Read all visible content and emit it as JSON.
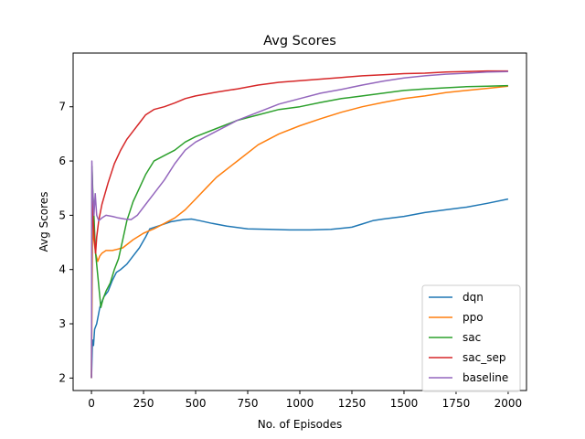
{
  "chart_data": {
    "type": "line",
    "title": "Avg Scores",
    "xlabel": "No. of Episodes",
    "ylabel": "Avg Scores",
    "xlim": [
      -88,
      2088
    ],
    "ylim": [
      1.77,
      7.99
    ],
    "xticks": [
      0,
      250,
      500,
      750,
      1000,
      1250,
      1500,
      1750,
      2000
    ],
    "yticks": [
      2,
      3,
      4,
      5,
      6,
      7
    ],
    "grid": false,
    "legend_position": "lower-right",
    "series": [
      {
        "name": "dqn",
        "color": "#1f77b4",
        "points": [
          [
            0,
            2.0
          ],
          [
            5,
            2.7
          ],
          [
            10,
            2.6
          ],
          [
            15,
            2.9
          ],
          [
            25,
            3.0
          ],
          [
            40,
            3.3
          ],
          [
            60,
            3.5
          ],
          [
            80,
            3.6
          ],
          [
            100,
            3.8
          ],
          [
            120,
            3.95
          ],
          [
            140,
            4.0
          ],
          [
            170,
            4.1
          ],
          [
            200,
            4.25
          ],
          [
            230,
            4.4
          ],
          [
            260,
            4.6
          ],
          [
            280,
            4.75
          ],
          [
            320,
            4.8
          ],
          [
            380,
            4.88
          ],
          [
            440,
            4.92
          ],
          [
            480,
            4.93
          ],
          [
            520,
            4.9
          ],
          [
            580,
            4.85
          ],
          [
            650,
            4.8
          ],
          [
            750,
            4.75
          ],
          [
            850,
            4.74
          ],
          [
            950,
            4.73
          ],
          [
            1050,
            4.73
          ],
          [
            1150,
            4.74
          ],
          [
            1250,
            4.78
          ],
          [
            1300,
            4.84
          ],
          [
            1350,
            4.9
          ],
          [
            1400,
            4.93
          ],
          [
            1500,
            4.98
          ],
          [
            1600,
            5.05
          ],
          [
            1700,
            5.1
          ],
          [
            1800,
            5.15
          ],
          [
            1900,
            5.22
          ],
          [
            2000,
            5.3
          ]
        ]
      },
      {
        "name": "ppo",
        "color": "#ff7f0e",
        "points": [
          [
            0,
            2.0
          ],
          [
            5,
            4.9
          ],
          [
            10,
            4.6
          ],
          [
            20,
            4.3
          ],
          [
            30,
            4.15
          ],
          [
            40,
            4.25
          ],
          [
            50,
            4.3
          ],
          [
            70,
            4.35
          ],
          [
            100,
            4.35
          ],
          [
            150,
            4.4
          ],
          [
            200,
            4.55
          ],
          [
            250,
            4.67
          ],
          [
            300,
            4.75
          ],
          [
            350,
            4.85
          ],
          [
            400,
            4.95
          ],
          [
            450,
            5.1
          ],
          [
            500,
            5.3
          ],
          [
            550,
            5.5
          ],
          [
            600,
            5.7
          ],
          [
            700,
            6.0
          ],
          [
            800,
            6.3
          ],
          [
            900,
            6.5
          ],
          [
            1000,
            6.65
          ],
          [
            1100,
            6.78
          ],
          [
            1200,
            6.9
          ],
          [
            1300,
            7.0
          ],
          [
            1400,
            7.08
          ],
          [
            1500,
            7.15
          ],
          [
            1600,
            7.2
          ],
          [
            1700,
            7.26
          ],
          [
            1800,
            7.3
          ],
          [
            1900,
            7.34
          ],
          [
            2000,
            7.38
          ]
        ]
      },
      {
        "name": "sac",
        "color": "#2ca02c",
        "points": [
          [
            0,
            2.0
          ],
          [
            3,
            5.9
          ],
          [
            6,
            5.5
          ],
          [
            10,
            5.2
          ],
          [
            15,
            4.7
          ],
          [
            20,
            4.3
          ],
          [
            30,
            3.9
          ],
          [
            40,
            3.5
          ],
          [
            45,
            3.3
          ],
          [
            55,
            3.45
          ],
          [
            70,
            3.6
          ],
          [
            90,
            3.75
          ],
          [
            110,
            4.0
          ],
          [
            130,
            4.2
          ],
          [
            150,
            4.55
          ],
          [
            170,
            4.9
          ],
          [
            200,
            5.25
          ],
          [
            230,
            5.5
          ],
          [
            260,
            5.75
          ],
          [
            300,
            6.0
          ],
          [
            350,
            6.1
          ],
          [
            400,
            6.2
          ],
          [
            450,
            6.35
          ],
          [
            500,
            6.45
          ],
          [
            600,
            6.6
          ],
          [
            700,
            6.75
          ],
          [
            800,
            6.85
          ],
          [
            900,
            6.95
          ],
          [
            1000,
            7.0
          ],
          [
            1100,
            7.08
          ],
          [
            1200,
            7.15
          ],
          [
            1300,
            7.2
          ],
          [
            1400,
            7.25
          ],
          [
            1500,
            7.3
          ],
          [
            1600,
            7.33
          ],
          [
            1700,
            7.35
          ],
          [
            1800,
            7.37
          ],
          [
            1900,
            7.38
          ],
          [
            2000,
            7.39
          ]
        ]
      },
      {
        "name": "sac_sep",
        "color": "#d62728",
        "points": [
          [
            0,
            2.0
          ],
          [
            3,
            5.6
          ],
          [
            6,
            5.0
          ],
          [
            10,
            4.8
          ],
          [
            15,
            4.5
          ],
          [
            20,
            4.3
          ],
          [
            25,
            4.6
          ],
          [
            35,
            4.9
          ],
          [
            50,
            5.2
          ],
          [
            80,
            5.6
          ],
          [
            110,
            5.95
          ],
          [
            140,
            6.2
          ],
          [
            170,
            6.4
          ],
          [
            200,
            6.55
          ],
          [
            230,
            6.7
          ],
          [
            260,
            6.85
          ],
          [
            300,
            6.95
          ],
          [
            350,
            7.0
          ],
          [
            400,
            7.07
          ],
          [
            450,
            7.15
          ],
          [
            500,
            7.2
          ],
          [
            600,
            7.27
          ],
          [
            700,
            7.33
          ],
          [
            800,
            7.4
          ],
          [
            900,
            7.45
          ],
          [
            1000,
            7.48
          ],
          [
            1100,
            7.51
          ],
          [
            1200,
            7.54
          ],
          [
            1300,
            7.57
          ],
          [
            1400,
            7.59
          ],
          [
            1500,
            7.61
          ],
          [
            1600,
            7.62
          ],
          [
            1700,
            7.64
          ],
          [
            1800,
            7.65
          ],
          [
            1900,
            7.66
          ],
          [
            2000,
            7.66
          ]
        ]
      },
      {
        "name": "baseline",
        "color": "#9467bd",
        "points": [
          [
            0,
            2.0
          ],
          [
            2,
            6.0
          ],
          [
            5,
            5.5
          ],
          [
            8,
            5.3
          ],
          [
            12,
            5.0
          ],
          [
            18,
            5.4
          ],
          [
            25,
            5.0
          ],
          [
            35,
            4.9
          ],
          [
            50,
            4.95
          ],
          [
            70,
            5.0
          ],
          [
            100,
            4.98
          ],
          [
            130,
            4.95
          ],
          [
            160,
            4.93
          ],
          [
            190,
            4.92
          ],
          [
            220,
            5.0
          ],
          [
            260,
            5.2
          ],
          [
            300,
            5.4
          ],
          [
            350,
            5.65
          ],
          [
            400,
            5.95
          ],
          [
            450,
            6.2
          ],
          [
            500,
            6.35
          ],
          [
            600,
            6.55
          ],
          [
            700,
            6.75
          ],
          [
            800,
            6.9
          ],
          [
            900,
            7.05
          ],
          [
            1000,
            7.15
          ],
          [
            1100,
            7.25
          ],
          [
            1200,
            7.32
          ],
          [
            1300,
            7.4
          ],
          [
            1400,
            7.47
          ],
          [
            1500,
            7.53
          ],
          [
            1600,
            7.57
          ],
          [
            1700,
            7.6
          ],
          [
            1800,
            7.62
          ],
          [
            1900,
            7.64
          ],
          [
            2000,
            7.65
          ]
        ]
      }
    ]
  }
}
